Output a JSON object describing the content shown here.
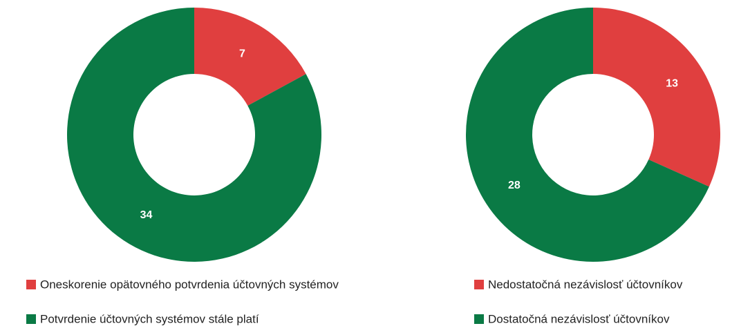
{
  "chart_data": [
    {
      "type": "pie",
      "categories": [
        "Oneskorenie opätovného potvrdenia účtovných systémov",
        "Potvrdenie účtovných systémov stále platí"
      ],
      "values": [
        7,
        34
      ],
      "colors": [
        "#e03f3f",
        "#0a7a45"
      ]
    },
    {
      "type": "pie",
      "categories": [
        "Nedostatočná nezávislosť účtovníkov",
        "Dostatočná nezávislosť účtovníkov"
      ],
      "values": [
        13,
        28
      ],
      "colors": [
        "#e03f3f",
        "#0a7a45"
      ]
    }
  ]
}
